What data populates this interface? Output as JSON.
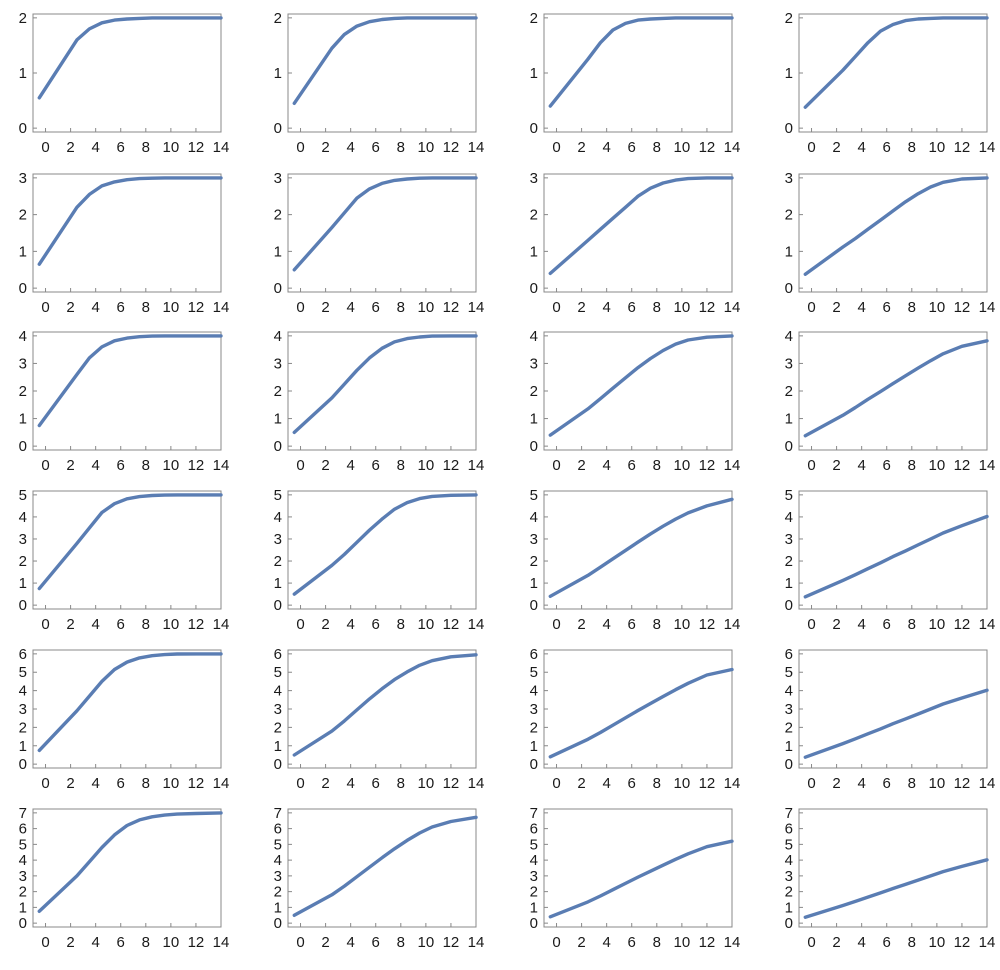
{
  "colors": {
    "series": "#5a7db3",
    "frame": "#888888",
    "text": "#1a1a1a"
  },
  "x_ticks": [
    "0",
    "2",
    "4",
    "6",
    "8",
    "10",
    "12",
    "14"
  ],
  "chart_data": [
    {
      "type": "line",
      "xlim": [
        -1,
        14
      ],
      "ylim": [
        0,
        2
      ],
      "yticks": [
        "0",
        "1",
        "2"
      ],
      "x": [
        -0.5,
        2.5,
        3.5,
        4.5,
        5.5,
        6.5,
        7.5,
        8.5,
        9.5,
        10.5,
        12,
        14
      ],
      "y": [
        0.55,
        1.6,
        1.8,
        1.91,
        1.96,
        1.98,
        1.99,
        2,
        2,
        2,
        2,
        2
      ]
    },
    {
      "type": "line",
      "xlim": [
        -1,
        14
      ],
      "ylim": [
        0,
        2
      ],
      "yticks": [
        "0",
        "1",
        "2"
      ],
      "x": [
        -0.5,
        2.5,
        3.5,
        4.5,
        5.5,
        6.5,
        7.5,
        8.5,
        9.5,
        10.5,
        12,
        14
      ],
      "y": [
        0.45,
        1.45,
        1.7,
        1.85,
        1.93,
        1.97,
        1.99,
        2,
        2,
        2,
        2,
        2
      ]
    },
    {
      "type": "line",
      "xlim": [
        -1,
        14
      ],
      "ylim": [
        0,
        2
      ],
      "yticks": [
        "0",
        "1",
        "2"
      ],
      "x": [
        -0.5,
        2.5,
        3.5,
        4.5,
        5.5,
        6.5,
        7.5,
        8.5,
        9.5,
        10.5,
        12,
        14
      ],
      "y": [
        0.4,
        1.25,
        1.55,
        1.78,
        1.9,
        1.96,
        1.98,
        1.99,
        2,
        2,
        2,
        2
      ]
    },
    {
      "type": "line",
      "xlim": [
        -1,
        14
      ],
      "ylim": [
        0,
        2
      ],
      "yticks": [
        "0",
        "1",
        "2"
      ],
      "x": [
        -0.5,
        2.5,
        3.5,
        4.5,
        5.5,
        6.5,
        7.5,
        8.5,
        9.5,
        10.5,
        12,
        14
      ],
      "y": [
        0.38,
        1.05,
        1.3,
        1.55,
        1.76,
        1.88,
        1.95,
        1.98,
        1.99,
        2,
        2,
        2
      ]
    },
    {
      "type": "line",
      "xlim": [
        -1,
        14
      ],
      "ylim": [
        0,
        3
      ],
      "yticks": [
        "0",
        "1",
        "2",
        "3"
      ],
      "x": [
        -0.5,
        2.5,
        3.5,
        4.5,
        5.5,
        6.5,
        7.5,
        8.5,
        9.5,
        10.5,
        12,
        14
      ],
      "y": [
        0.65,
        2.2,
        2.55,
        2.78,
        2.89,
        2.95,
        2.98,
        2.99,
        3,
        3,
        3,
        3
      ]
    },
    {
      "type": "line",
      "xlim": [
        -1,
        14
      ],
      "ylim": [
        0,
        3
      ],
      "yticks": [
        "0",
        "1",
        "2",
        "3"
      ],
      "x": [
        -0.5,
        2.5,
        3.5,
        4.5,
        5.5,
        6.5,
        7.5,
        8.5,
        9.5,
        10.5,
        12,
        14
      ],
      "y": [
        0.5,
        1.65,
        2.05,
        2.45,
        2.7,
        2.85,
        2.93,
        2.97,
        2.99,
        3,
        3,
        3
      ]
    },
    {
      "type": "line",
      "xlim": [
        -1,
        14
      ],
      "ylim": [
        0,
        3
      ],
      "yticks": [
        "0",
        "1",
        "2",
        "3"
      ],
      "x": [
        -0.5,
        2.5,
        3.5,
        4.5,
        5.5,
        6.5,
        7.5,
        8.5,
        9.5,
        10.5,
        12,
        14
      ],
      "y": [
        0.4,
        1.3,
        1.6,
        1.9,
        2.2,
        2.5,
        2.72,
        2.86,
        2.94,
        2.98,
        3,
        3
      ]
    },
    {
      "type": "line",
      "xlim": [
        -1,
        14
      ],
      "ylim": [
        0,
        3
      ],
      "yticks": [
        "0",
        "1",
        "2",
        "3"
      ],
      "x": [
        -0.5,
        2.5,
        3.5,
        4.5,
        5.5,
        6.5,
        7.5,
        8.5,
        9.5,
        10.5,
        12,
        14
      ],
      "y": [
        0.38,
        1.12,
        1.35,
        1.6,
        1.85,
        2.1,
        2.35,
        2.57,
        2.75,
        2.88,
        2.97,
        3
      ]
    },
    {
      "type": "line",
      "xlim": [
        -1,
        14
      ],
      "ylim": [
        0,
        4
      ],
      "yticks": [
        "0",
        "1",
        "2",
        "3",
        "4"
      ],
      "x": [
        -0.5,
        2.5,
        3.5,
        4.5,
        5.5,
        6.5,
        7.5,
        8.5,
        9.5,
        10.5,
        12,
        14
      ],
      "y": [
        0.75,
        2.6,
        3.2,
        3.6,
        3.82,
        3.92,
        3.97,
        3.99,
        4,
        4,
        4,
        4
      ]
    },
    {
      "type": "line",
      "xlim": [
        -1,
        14
      ],
      "ylim": [
        0,
        4
      ],
      "yticks": [
        "0",
        "1",
        "2",
        "3",
        "4"
      ],
      "x": [
        -0.5,
        2.5,
        3.5,
        4.5,
        5.5,
        6.5,
        7.5,
        8.5,
        9.5,
        10.5,
        12,
        14
      ],
      "y": [
        0.5,
        1.75,
        2.25,
        2.75,
        3.2,
        3.55,
        3.78,
        3.9,
        3.96,
        3.99,
        4,
        4
      ]
    },
    {
      "type": "line",
      "xlim": [
        -1,
        14
      ],
      "ylim": [
        0,
        4
      ],
      "yticks": [
        "0",
        "1",
        "2",
        "3",
        "4"
      ],
      "x": [
        -0.5,
        2.5,
        3.5,
        4.5,
        5.5,
        6.5,
        7.5,
        8.5,
        9.5,
        10.5,
        12,
        14
      ],
      "y": [
        0.4,
        1.35,
        1.72,
        2.1,
        2.48,
        2.85,
        3.18,
        3.47,
        3.7,
        3.85,
        3.95,
        4
      ]
    },
    {
      "type": "line",
      "xlim": [
        -1,
        14
      ],
      "ylim": [
        0,
        4
      ],
      "yticks": [
        "0",
        "1",
        "2",
        "3",
        "4"
      ],
      "x": [
        -0.5,
        2.5,
        3.5,
        4.5,
        5.5,
        6.5,
        7.5,
        8.5,
        9.5,
        10.5,
        12,
        14
      ],
      "y": [
        0.38,
        1.12,
        1.4,
        1.7,
        1.98,
        2.27,
        2.55,
        2.83,
        3.1,
        3.35,
        3.62,
        3.82
      ]
    },
    {
      "type": "line",
      "xlim": [
        -1,
        14
      ],
      "ylim": [
        0,
        5
      ],
      "yticks": [
        "0",
        "1",
        "2",
        "3",
        "4",
        "5"
      ],
      "x": [
        -0.5,
        2.5,
        3.5,
        4.5,
        5.5,
        6.5,
        7.5,
        8.5,
        9.5,
        10.5,
        12,
        14
      ],
      "y": [
        0.75,
        2.8,
        3.5,
        4.2,
        4.6,
        4.82,
        4.92,
        4.97,
        4.99,
        5,
        5,
        5
      ]
    },
    {
      "type": "line",
      "xlim": [
        -1,
        14
      ],
      "ylim": [
        0,
        5
      ],
      "yticks": [
        "0",
        "1",
        "2",
        "3",
        "4",
        "5"
      ],
      "x": [
        -0.5,
        2.5,
        3.5,
        4.5,
        5.5,
        6.5,
        7.5,
        8.5,
        9.5,
        10.5,
        12,
        14
      ],
      "y": [
        0.5,
        1.8,
        2.3,
        2.85,
        3.4,
        3.9,
        4.35,
        4.65,
        4.83,
        4.93,
        4.98,
        5
      ]
    },
    {
      "type": "line",
      "xlim": [
        -1,
        14
      ],
      "ylim": [
        0,
        5
      ],
      "yticks": [
        "0",
        "1",
        "2",
        "3",
        "4",
        "5"
      ],
      "x": [
        -0.5,
        2.5,
        3.5,
        4.5,
        5.5,
        6.5,
        7.5,
        8.5,
        9.5,
        10.5,
        12,
        14
      ],
      "y": [
        0.4,
        1.35,
        1.72,
        2.1,
        2.48,
        2.86,
        3.23,
        3.58,
        3.9,
        4.18,
        4.5,
        4.8
      ]
    },
    {
      "type": "line",
      "xlim": [
        -1,
        14
      ],
      "ylim": [
        0,
        5
      ],
      "yticks": [
        "0",
        "1",
        "2",
        "3",
        "4",
        "5"
      ],
      "x": [
        -0.5,
        2.5,
        3.5,
        4.5,
        5.5,
        6.5,
        7.5,
        8.5,
        9.5,
        10.5,
        12,
        14
      ],
      "y": [
        0.38,
        1.12,
        1.38,
        1.65,
        1.92,
        2.2,
        2.46,
        2.73,
        3,
        3.27,
        3.6,
        4.02
      ]
    },
    {
      "type": "line",
      "xlim": [
        -1,
        14
      ],
      "ylim": [
        0,
        6
      ],
      "yticks": [
        "0",
        "1",
        "2",
        "3",
        "4",
        "5",
        "6"
      ],
      "x": [
        -0.5,
        2.5,
        3.5,
        4.5,
        5.5,
        6.5,
        7.5,
        8.5,
        9.5,
        10.5,
        12,
        14
      ],
      "y": [
        0.75,
        2.9,
        3.7,
        4.5,
        5.15,
        5.55,
        5.78,
        5.9,
        5.96,
        5.99,
        6,
        6
      ]
    },
    {
      "type": "line",
      "xlim": [
        -1,
        14
      ],
      "ylim": [
        0,
        6
      ],
      "yticks": [
        "0",
        "1",
        "2",
        "3",
        "4",
        "5",
        "6"
      ],
      "x": [
        -0.5,
        2.5,
        3.5,
        4.5,
        5.5,
        6.5,
        7.5,
        8.5,
        9.5,
        10.5,
        12,
        14
      ],
      "y": [
        0.5,
        1.8,
        2.35,
        2.95,
        3.55,
        4.1,
        4.6,
        5.02,
        5.38,
        5.63,
        5.84,
        5.95
      ]
    },
    {
      "type": "line",
      "xlim": [
        -1,
        14
      ],
      "ylim": [
        0,
        6
      ],
      "yticks": [
        "0",
        "1",
        "2",
        "3",
        "4",
        "5",
        "6"
      ],
      "x": [
        -0.5,
        2.5,
        3.5,
        4.5,
        5.5,
        6.5,
        7.5,
        8.5,
        9.5,
        10.5,
        12,
        14
      ],
      "y": [
        0.4,
        1.35,
        1.72,
        2.12,
        2.52,
        2.92,
        3.3,
        3.68,
        4.05,
        4.4,
        4.85,
        5.15
      ]
    },
    {
      "type": "line",
      "xlim": [
        -1,
        14
      ],
      "ylim": [
        0,
        6
      ],
      "yticks": [
        "0",
        "1",
        "2",
        "3",
        "4",
        "5",
        "6"
      ],
      "x": [
        -0.5,
        2.5,
        3.5,
        4.5,
        5.5,
        6.5,
        7.5,
        8.5,
        9.5,
        10.5,
        12,
        14
      ],
      "y": [
        0.38,
        1.12,
        1.38,
        1.65,
        1.92,
        2.2,
        2.46,
        2.73,
        3,
        3.27,
        3.6,
        4.02
      ]
    },
    {
      "type": "line",
      "xlim": [
        -1,
        14
      ],
      "ylim": [
        0,
        7
      ],
      "yticks": [
        "0",
        "1",
        "2",
        "3",
        "4",
        "5",
        "6",
        "7"
      ],
      "x": [
        -0.5,
        2.5,
        3.5,
        4.5,
        5.5,
        6.5,
        7.5,
        8.5,
        9.5,
        10.5,
        12,
        14
      ],
      "y": [
        0.75,
        3,
        3.9,
        4.8,
        5.6,
        6.2,
        6.55,
        6.75,
        6.86,
        6.92,
        6.96,
        7
      ]
    },
    {
      "type": "line",
      "xlim": [
        -1,
        14
      ],
      "ylim": [
        0,
        7
      ],
      "yticks": [
        "0",
        "1",
        "2",
        "3",
        "4",
        "5",
        "6",
        "7"
      ],
      "x": [
        -0.5,
        2.5,
        3.5,
        4.5,
        5.5,
        6.5,
        7.5,
        8.5,
        9.5,
        10.5,
        12,
        14
      ],
      "y": [
        0.5,
        1.8,
        2.35,
        2.95,
        3.55,
        4.15,
        4.72,
        5.25,
        5.72,
        6.1,
        6.45,
        6.72
      ]
    },
    {
      "type": "line",
      "xlim": [
        -1,
        14
      ],
      "ylim": [
        0,
        7
      ],
      "yticks": [
        "0",
        "1",
        "2",
        "3",
        "4",
        "5",
        "6",
        "7"
      ],
      "x": [
        -0.5,
        2.5,
        3.5,
        4.5,
        5.5,
        6.5,
        7.5,
        8.5,
        9.5,
        10.5,
        12,
        14
      ],
      "y": [
        0.4,
        1.35,
        1.72,
        2.12,
        2.52,
        2.92,
        3.3,
        3.68,
        4.05,
        4.4,
        4.85,
        5.2
      ]
    },
    {
      "type": "line",
      "xlim": [
        -1,
        14
      ],
      "ylim": [
        0,
        7
      ],
      "yticks": [
        "0",
        "1",
        "2",
        "3",
        "4",
        "5",
        "6",
        "7"
      ],
      "x": [
        -0.5,
        2.5,
        3.5,
        4.5,
        5.5,
        6.5,
        7.5,
        8.5,
        9.5,
        10.5,
        12,
        14
      ],
      "y": [
        0.38,
        1.12,
        1.38,
        1.65,
        1.92,
        2.2,
        2.46,
        2.73,
        3,
        3.27,
        3.6,
        4.02
      ]
    }
  ]
}
